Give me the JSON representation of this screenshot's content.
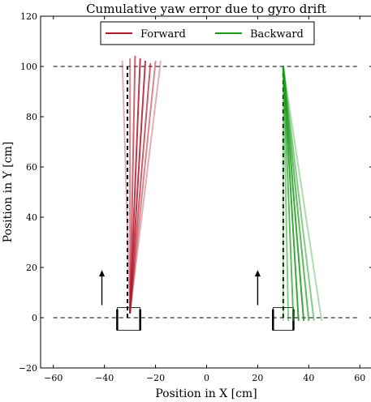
{
  "chart_data": {
    "type": "line",
    "title": "Cumulative yaw error due to gyro drift",
    "xlabel": "Position in X [cm]",
    "ylabel": "Position in Y [cm]",
    "xlim": [
      -65,
      65
    ],
    "ylim": [
      -20,
      120
    ],
    "xticks": [
      -60,
      -40,
      -20,
      0,
      20,
      40,
      60
    ],
    "yticks": [
      -20,
      0,
      20,
      40,
      60,
      80,
      100,
      120
    ],
    "grid": false,
    "legend_position": "top-center",
    "colors": {
      "forward": "#b2182b",
      "backward": "#1a9a1a",
      "reference": "#000000"
    },
    "reference_lines": [
      {
        "orientation": "horizontal",
        "y": 0,
        "x_range": [
          -60,
          60
        ]
      },
      {
        "orientation": "horizontal",
        "y": 100,
        "x_range": [
          -60,
          60
        ]
      },
      {
        "orientation": "vertical",
        "x": -31,
        "y_range": [
          0,
          100
        ]
      },
      {
        "orientation": "vertical",
        "x": 30,
        "y_range": [
          0,
          100
        ]
      }
    ],
    "arrows": [
      {
        "x": -41,
        "y_from": 5,
        "y_to": 19
      },
      {
        "x": 20,
        "y_from": 5,
        "y_to": 19
      }
    ],
    "boxes": [
      {
        "x_range": [
          -35,
          -26
        ],
        "y_range": [
          -5,
          4
        ]
      },
      {
        "x_range": [
          26,
          34
        ],
        "y_range": [
          -5,
          4
        ]
      }
    ],
    "series": [
      {
        "name": "Forward",
        "start": [
          -30,
          2
        ],
        "end_points": [
          [
            -33,
            102
          ],
          [
            -30,
            103
          ],
          [
            -28,
            104
          ],
          [
            -26,
            103
          ],
          [
            -24,
            102
          ],
          [
            -22,
            101
          ],
          [
            -20,
            102
          ],
          [
            -18,
            102
          ]
        ]
      },
      {
        "name": "Backward",
        "start": [
          30,
          100
        ],
        "end_points": [
          [
            30,
            -1
          ],
          [
            32,
            -1
          ],
          [
            34,
            -1
          ],
          [
            36,
            -1
          ],
          [
            38,
            -1
          ],
          [
            40,
            -1
          ],
          [
            42,
            -1
          ],
          [
            45,
            -1
          ]
        ]
      }
    ]
  }
}
